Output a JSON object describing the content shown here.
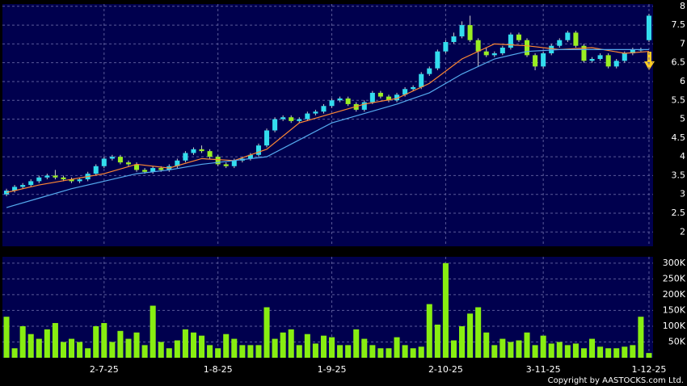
{
  "chart_data": [
    {
      "type": "candlestick",
      "open": [
        3.0,
        3.1,
        3.2,
        3.25,
        3.35,
        3.45,
        3.5,
        3.45,
        3.4,
        3.35,
        3.4,
        3.55,
        3.75,
        3.95,
        4.0,
        3.85,
        3.8,
        3.65,
        3.6,
        3.7,
        3.65,
        3.75,
        3.9,
        4.1,
        4.2,
        4.15,
        4.0,
        3.8,
        3.75,
        3.9,
        3.95,
        4.05,
        4.3,
        4.7,
        5.0,
        5.05,
        4.95,
        5.0,
        5.15,
        5.2,
        5.35,
        5.5,
        5.55,
        5.4,
        5.25,
        5.45,
        5.7,
        5.6,
        5.5,
        5.65,
        5.8,
        5.85,
        6.2,
        6.35,
        6.8,
        7.05,
        7.2,
        7.5,
        7.1,
        6.8,
        6.7,
        6.75,
        6.9,
        7.25,
        7.1,
        6.7,
        6.4,
        6.75,
        6.95,
        7.1,
        7.3,
        6.95,
        6.55,
        6.6,
        6.7,
        6.4,
        6.55,
        6.75,
        6.85,
        7.1
      ],
      "high": [
        3.15,
        3.25,
        3.3,
        3.4,
        3.5,
        3.55,
        3.65,
        3.5,
        3.45,
        3.45,
        3.6,
        3.8,
        4.0,
        4.05,
        4.05,
        3.9,
        3.85,
        3.7,
        3.75,
        3.75,
        3.8,
        3.95,
        4.15,
        4.25,
        4.3,
        4.2,
        4.05,
        3.85,
        3.95,
        4.0,
        4.1,
        4.35,
        4.75,
        5.05,
        5.1,
        5.1,
        5.05,
        5.2,
        5.25,
        5.4,
        5.55,
        5.6,
        5.6,
        5.45,
        5.5,
        5.75,
        5.75,
        5.65,
        5.7,
        5.85,
        5.9,
        6.25,
        6.4,
        6.85,
        7.1,
        7.3,
        7.6,
        7.75,
        7.15,
        6.9,
        6.8,
        6.95,
        7.3,
        7.3,
        7.15,
        6.75,
        6.8,
        7.0,
        7.15,
        7.35,
        7.35,
        7.0,
        6.65,
        6.75,
        6.75,
        6.6,
        6.8,
        6.9,
        6.9,
        7.8
      ],
      "low": [
        2.95,
        3.05,
        3.15,
        3.2,
        3.3,
        3.4,
        3.4,
        3.35,
        3.3,
        3.3,
        3.35,
        3.5,
        3.7,
        3.9,
        3.8,
        3.75,
        3.6,
        3.55,
        3.55,
        3.6,
        3.6,
        3.7,
        3.85,
        4.05,
        4.1,
        3.95,
        3.75,
        3.7,
        3.7,
        3.85,
        3.9,
        4.0,
        4.25,
        4.65,
        4.95,
        4.9,
        4.9,
        4.95,
        5.1,
        5.15,
        5.3,
        5.45,
        5.35,
        5.2,
        5.2,
        5.4,
        5.55,
        5.45,
        5.45,
        5.6,
        5.75,
        5.8,
        6.15,
        6.3,
        6.75,
        7.0,
        7.15,
        7.05,
        6.4,
        6.65,
        6.65,
        6.7,
        6.85,
        7.05,
        6.65,
        6.3,
        6.35,
        6.7,
        6.9,
        7.05,
        6.9,
        6.5,
        6.5,
        6.55,
        6.35,
        6.35,
        6.5,
        6.7,
        6.8,
        7.05
      ],
      "close": [
        3.1,
        3.2,
        3.25,
        3.35,
        3.45,
        3.5,
        3.45,
        3.4,
        3.35,
        3.4,
        3.55,
        3.75,
        3.95,
        4.0,
        3.85,
        3.8,
        3.65,
        3.6,
        3.7,
        3.65,
        3.75,
        3.9,
        4.1,
        4.2,
        4.15,
        4.0,
        3.8,
        3.75,
        3.9,
        3.95,
        4.05,
        4.3,
        4.7,
        5.0,
        5.05,
        4.95,
        5.0,
        5.15,
        5.2,
        5.35,
        5.5,
        5.55,
        5.4,
        5.25,
        5.45,
        5.7,
        5.6,
        5.5,
        5.65,
        5.8,
        5.85,
        6.2,
        6.35,
        6.8,
        7.05,
        7.2,
        7.5,
        7.1,
        6.8,
        6.7,
        6.75,
        6.9,
        7.25,
        7.1,
        6.7,
        6.4,
        6.75,
        6.95,
        7.1,
        7.3,
        6.95,
        6.55,
        6.6,
        6.7,
        6.4,
        6.55,
        6.75,
        6.85,
        6.85,
        7.75
      ],
      "up_color": "#33ddee",
      "down_color": "#99ee22",
      "series": [
        {
          "color": "#ff8833",
          "x": [
            0,
            4,
            8,
            12,
            16,
            20,
            24,
            28,
            32,
            36,
            40,
            44,
            48,
            52,
            56,
            60,
            64,
            68,
            72,
            76,
            79
          ],
          "values": [
            3.05,
            3.25,
            3.4,
            3.55,
            3.8,
            3.7,
            3.95,
            3.9,
            4.2,
            4.9,
            5.15,
            5.4,
            5.55,
            5.95,
            6.6,
            7.0,
            6.95,
            6.85,
            6.9,
            6.75,
            6.8
          ]
        },
        {
          "color": "#55aaee",
          "x": [
            0,
            4,
            8,
            12,
            16,
            20,
            24,
            28,
            32,
            36,
            40,
            44,
            48,
            52,
            56,
            60,
            64,
            68,
            72,
            76,
            79
          ],
          "values": [
            2.65,
            2.9,
            3.15,
            3.35,
            3.55,
            3.65,
            3.8,
            3.9,
            4.0,
            4.45,
            4.9,
            5.15,
            5.4,
            5.7,
            6.2,
            6.6,
            6.8,
            6.85,
            6.85,
            6.85,
            6.85
          ]
        }
      ],
      "ylim": [
        1.62,
        8.06
      ],
      "yticks": [
        2,
        2.5,
        3,
        3.5,
        4,
        4.5,
        5,
        5.5,
        6,
        6.5,
        7,
        7.5,
        8
      ],
      "grid": true
    },
    {
      "type": "bar",
      "categories": [
        null,
        null,
        null,
        null,
        null,
        null,
        null,
        null,
        null,
        null,
        null,
        null,
        "2-7-25",
        null,
        null,
        null,
        null,
        null,
        null,
        null,
        null,
        null,
        null,
        null,
        null,
        null,
        "1-8-25",
        null,
        null,
        null,
        null,
        null,
        null,
        null,
        null,
        null,
        null,
        null,
        null,
        null,
        "1-9-25",
        null,
        null,
        null,
        null,
        null,
        null,
        null,
        null,
        null,
        null,
        null,
        null,
        null,
        "2-10-25",
        null,
        null,
        null,
        null,
        null,
        null,
        null,
        null,
        null,
        null,
        null,
        "3-11-25",
        null,
        null,
        null,
        null,
        null,
        null,
        null,
        null,
        null,
        null,
        null,
        null,
        "1-12-25"
      ],
      "values": [
        130000,
        30000,
        100000,
        75000,
        60000,
        90000,
        110000,
        50000,
        60000,
        50000,
        30000,
        100000,
        110000,
        50000,
        85000,
        60000,
        80000,
        40000,
        165000,
        50000,
        30000,
        55000,
        90000,
        80000,
        70000,
        40000,
        30000,
        75000,
        60000,
        40000,
        40000,
        40000,
        160000,
        60000,
        80000,
        90000,
        40000,
        75000,
        45000,
        70000,
        65000,
        40000,
        40000,
        90000,
        60000,
        40000,
        30000,
        30000,
        65000,
        40000,
        30000,
        35000,
        170000,
        105000,
        300000,
        55000,
        100000,
        140000,
        160000,
        80000,
        40000,
        60000,
        50000,
        55000,
        80000,
        40000,
        70000,
        45000,
        50000,
        40000,
        45000,
        30000,
        60000,
        35000,
        30000,
        30000,
        35000,
        40000,
        130000,
        15000
      ],
      "color": "#88ee11",
      "ylim": [
        0,
        320000
      ],
      "yticks": [
        {
          "value": 50000,
          "label": "50K"
        },
        {
          "value": 100000,
          "label": "100K"
        },
        {
          "value": 150000,
          "label": "150K"
        },
        {
          "value": 200000,
          "label": "200K"
        },
        {
          "value": 250000,
          "label": "250K"
        },
        {
          "value": 300000,
          "label": "300K"
        }
      ],
      "grid": true
    }
  ],
  "footer": "Copyright by AASTOCKS.com Ltd."
}
